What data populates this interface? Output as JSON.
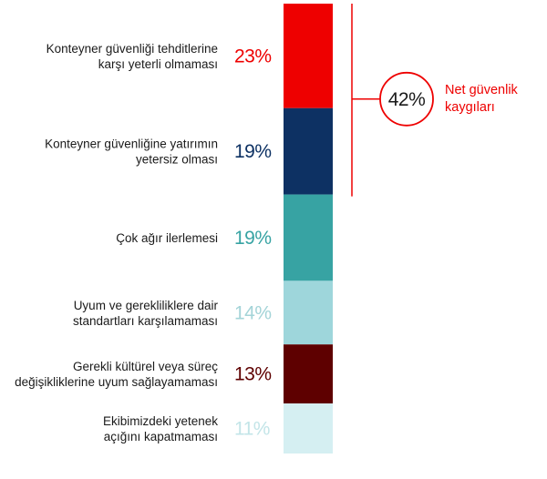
{
  "chart_data": {
    "type": "bar",
    "orientation": "stacked-vertical",
    "unit": "%",
    "title": "",
    "categories": [
      "Konteyner güvenliği tehditlerine karşı yeterli olmaması",
      "Konteyner güvenliğine yatırımın yetersiz olması",
      "Çok ağır ilerlemesi",
      "Uyum ve gerekliliklere dair standartları karşılamaması",
      "Gerekli kültürel veya süreç değişikliklerine uyum sağlayamaması",
      "Ekibimizdeki yetenek açığını kapatmaması"
    ],
    "label_lines": [
      [
        "Konteyner güvenliği tehditlerine",
        "karşı yeterli olmaması"
      ],
      [
        "Konteyner güvenliğine yatırımın",
        "yetersiz olması"
      ],
      [
        "Çok ağır ilerlemesi"
      ],
      [
        "Uyum ve gerekliliklere dair",
        "standartları karşılamaması"
      ],
      [
        "Gerekli kültürel veya süreç",
        "değişikliklerine uyum sağlayamaması"
      ],
      [
        "Ekibimizdeki yetenek",
        "açığını kapatmaması"
      ]
    ],
    "values": [
      23,
      19,
      19,
      14,
      13,
      11
    ],
    "value_labels": [
      "23%",
      "19%",
      "19%",
      "14%",
      "13%",
      "11%"
    ],
    "colors": [
      "#ee0000",
      "#0d3163",
      "#37a3a3",
      "#9ed6db",
      "#5e0000",
      "#d5eff2"
    ],
    "callout": {
      "value_label": "42%",
      "text_lines": [
        "Net güvenlik",
        "kaygıları"
      ],
      "spans_categories": [
        0,
        1
      ],
      "color": "#ee0000"
    }
  }
}
